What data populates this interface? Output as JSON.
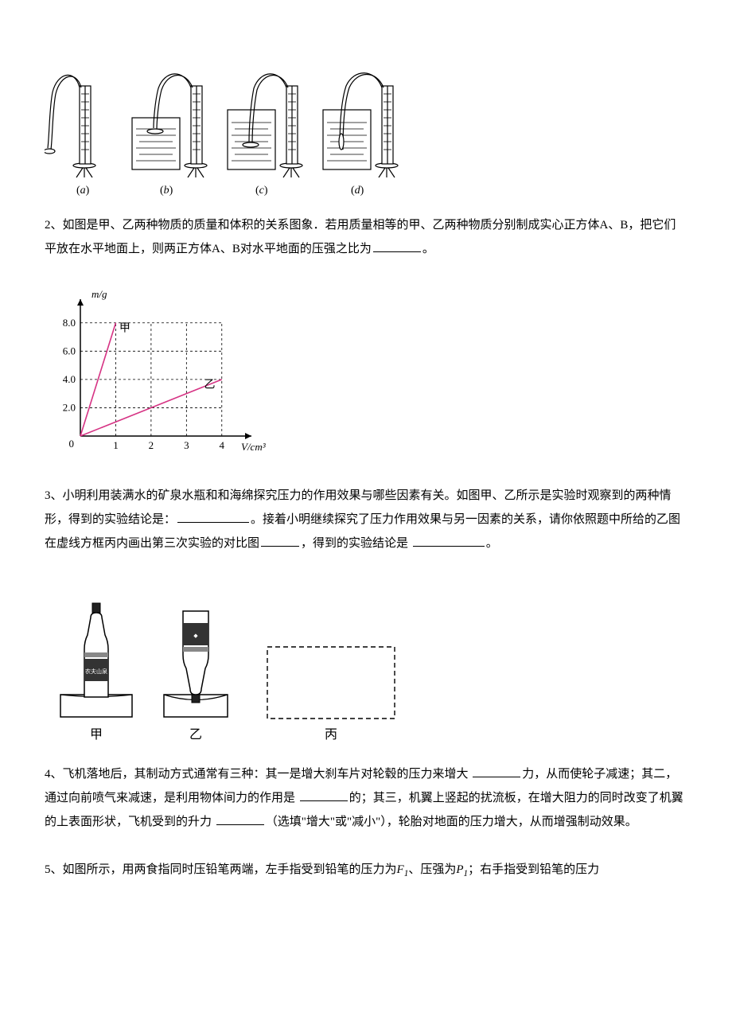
{
  "fig1": {
    "labels": [
      "(a)",
      "(b)",
      "(c)",
      "(d)"
    ],
    "label_style": "italic",
    "stroke": "#000000",
    "fill": "#ffffff",
    "water_fill": "#ffffff"
  },
  "q2": {
    "prefix": "2、如图是甲、乙两种物质的质量和体积的关系图象．若用质量相等的甲、乙两种物质分别制成实心正方体A、B，把它们平放在水平地面上，则两正方体A、B对水平地面的压强之比为",
    "suffix": "。"
  },
  "chart": {
    "y_label": "m/g",
    "x_label": "V/cm³",
    "y_ticks": [
      "2.0",
      "4.0",
      "6.0",
      "8.0"
    ],
    "y_tick_values": [
      2,
      4,
      6,
      8
    ],
    "x_ticks": [
      "1",
      "2",
      "3",
      "4"
    ],
    "x_tick_values": [
      1,
      2,
      3,
      4
    ],
    "origin_label": "0",
    "series": [
      {
        "label": "甲",
        "points": [
          [
            0,
            0
          ],
          [
            1,
            8
          ]
        ],
        "label_pos": [
          1.1,
          7.4
        ],
        "color": "#d63384"
      },
      {
        "label": "乙",
        "points": [
          [
            0,
            0
          ],
          [
            4,
            4
          ]
        ],
        "label_pos": [
          3.5,
          3.4
        ],
        "color": "#d63384"
      }
    ],
    "grid_dash": "3,3",
    "axis_color": "#000000",
    "grid_color": "#000000",
    "font_size": 13
  },
  "q3": {
    "t1": "3、小明利用装满水的矿泉水瓶和和海绵探究压力的作用效果与哪些因素有关。如图甲、乙所示是实验时观察到的两种情形，得到的实验结论是：",
    "t2": "。接着小明继续探究了压力作用效果与另一因素的关系，请你依照题中所给的乙图在虚线方框丙内画出第三次实验的对比图",
    "t3": "，得到的实验结论是 ",
    "t4": "。"
  },
  "fig3": {
    "labels": [
      "甲",
      "乙",
      "丙"
    ],
    "brand_top": "▬▬▬",
    "brand_text": "农夫山泉",
    "sponge_color": "#ffffff",
    "stroke": "#000000"
  },
  "q4": {
    "t1": "4、飞机落地后，其制动方式通常有三种：其一是增大刹车片对轮毂的压力来增大 ",
    "t2": "力，从而使轮子减速；其二，通过向前喷气来减速，是利用物体间力的作用是 ",
    "t3": "的；其三，机翼上竖起的扰流板，在增大阻力的同时改变了机翼的上表面形状，飞机受到的升力 ",
    "t4": "（选填\"增大\"或\"减小\"），轮胎对地面的压力增大，从而增强制动效果。"
  },
  "q5": {
    "t1": "5、如图所示，用两食指同时压铅笔两端，左手指受到铅笔的压力为",
    "F1_base": "F",
    "F1_sub": "1",
    "t2": "、压强为",
    "P1_base": "P",
    "P1_sub": "1",
    "t3": "；右手指受到铅笔的压力"
  }
}
